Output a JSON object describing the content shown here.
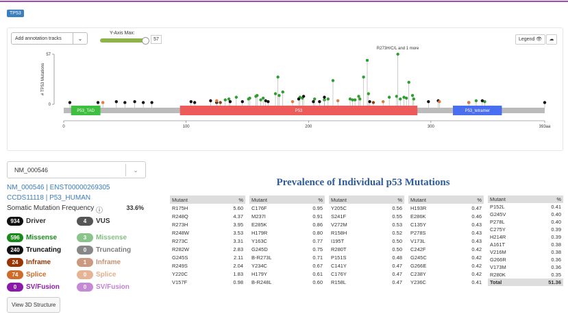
{
  "header": {
    "gene_badge": "TP53"
  },
  "controls": {
    "annotation_tracks": "Add annotation tracks",
    "y_axis_max_label": "Y-Axis Max:",
    "legend_button": "Legend"
  },
  "chart_data": {
    "type": "lollipop",
    "y_label": "# TP53 Mutations",
    "annotation": "R273H/C/L and 1 more",
    "annotation_x": 273,
    "xlim": [
      0,
      393
    ],
    "xticks": [
      0,
      100,
      200,
      300,
      {
        "value": 393,
        "label": "393aa"
      }
    ],
    "ylim": [
      0,
      57
    ],
    "yticks": [
      0,
      57
    ],
    "domains": [
      {
        "name": "P53_TAD",
        "start": 6,
        "end": 30,
        "color": "#3fbf3f"
      },
      {
        "name": "P53",
        "start": 95,
        "end": 289,
        "color": "#ec5a5a"
      },
      {
        "name": "P53_tetramer",
        "start": 318,
        "end": 358,
        "color": "#4a6ef0"
      }
    ],
    "series": [
      {
        "color": "#2e9e2e",
        "x": [
          132,
          135,
          141,
          151,
          152,
          157,
          158,
          161,
          163,
          173,
          175,
          176,
          179,
          193,
          195,
          205,
          213,
          216,
          220,
          234,
          236,
          238,
          241,
          242,
          245,
          248,
          249,
          266,
          272,
          273,
          275,
          278,
          280,
          282,
          285,
          286,
          337,
          344
        ],
        "values": [
          5,
          6,
          8,
          6,
          7,
          9,
          10,
          5,
          7,
          12,
          31,
          10,
          14,
          8,
          7,
          6,
          5,
          6,
          27,
          6,
          5,
          5,
          9,
          6,
          31,
          50,
          12,
          8,
          9,
          57,
          6,
          8,
          7,
          25,
          10,
          6,
          4,
          3
        ]
      },
      {
        "color": "#111111",
        "x": [
          5,
          28,
          43,
          50,
          58,
          65,
          72,
          104,
          107,
          120,
          125,
          136,
          146,
          165,
          167,
          192,
          196,
          204,
          209,
          213,
          250,
          298,
          306,
          331,
          342,
          393
        ],
        "values": [
          2,
          2,
          3,
          2,
          3,
          2,
          2,
          3,
          2,
          4,
          2,
          3,
          3,
          4,
          3,
          6,
          9,
          3,
          3,
          8,
          3,
          3,
          4,
          2,
          4,
          2
        ]
      },
      {
        "color": "#e07b39",
        "x": [
          32,
          125,
          187,
          224,
          261,
          307,
          331
        ],
        "values": [
          2,
          4,
          3,
          4,
          3,
          3,
          2
        ]
      },
      {
        "color": "#8b4513",
        "x": [
          128,
          253
        ],
        "values": [
          2,
          2
        ]
      }
    ]
  },
  "transcript": {
    "selected": "NM_000546",
    "links_1": "NM_000546 | ENST00000269305",
    "links_2": "CCDS11118 | P53_HUMAN",
    "frequency_label": "Somatic Mutation Frequency",
    "frequency": "33.6%",
    "driver": {
      "count": 934,
      "label": "Driver"
    },
    "vus": {
      "count": 4,
      "label": "VUS"
    },
    "types": [
      {
        "label": "Missense",
        "driver": 596,
        "vus": 3,
        "color": "#1a8a1a"
      },
      {
        "label": "Truncating",
        "driver": 240,
        "vus": 0,
        "color": "#111111"
      },
      {
        "label": "Inframe",
        "driver": 24,
        "vus": 1,
        "color": "#993404"
      },
      {
        "label": "Splice",
        "driver": 74,
        "vus": 0,
        "color": "#cf6b2b"
      },
      {
        "label": "SV/Fusion",
        "driver": 0,
        "vus": 0,
        "color": "#8b1aaa"
      }
    ],
    "view_3d": "View 3D Structure"
  },
  "table": {
    "title": "Prevalence of Individual p53 Mutations",
    "headers": [
      "Mutant",
      "%"
    ],
    "groups": [
      [
        [
          "R175H",
          "5.60"
        ],
        [
          "R248Q",
          "4.37"
        ],
        [
          "R273H",
          "3.95"
        ],
        [
          "R248W",
          "3.53"
        ],
        [
          "R273C",
          "3.31"
        ],
        [
          "R282W",
          "2.83"
        ],
        [
          "G245S",
          "2.11"
        ],
        [
          "R249S",
          "2.04"
        ],
        [
          "Y220C",
          "1.83"
        ],
        [
          "V157F",
          "0.98"
        ]
      ],
      [
        [
          "C176F",
          "0.95"
        ],
        [
          "M237I",
          "0.91"
        ],
        [
          "E285K",
          "0.86"
        ],
        [
          "H179R",
          "0.80"
        ],
        [
          "Y163C",
          "0.77"
        ],
        [
          "G245D",
          "0.75"
        ],
        [
          "B-R273L",
          "0.71"
        ],
        [
          "Y234C",
          "0.67"
        ],
        [
          "H179Y",
          "0.61"
        ],
        [
          "B-R248L",
          "0.60"
        ]
      ],
      [
        [
          "Y205C",
          "0.56"
        ],
        [
          "S241F",
          "0.55"
        ],
        [
          "V272M",
          "0.53"
        ],
        [
          "R158H",
          "0.52"
        ],
        [
          "I195T",
          "0.50"
        ],
        [
          "R280T",
          "0.50"
        ],
        [
          "P151S",
          "0.48"
        ],
        [
          "C141Y",
          "0.47"
        ],
        [
          "C176Y",
          "0.47"
        ],
        [
          "R158L",
          "0.47"
        ]
      ],
      [
        [
          "H193R",
          "0.47"
        ],
        [
          "E286K",
          "0.46"
        ],
        [
          "C135Y",
          "0.43"
        ],
        [
          "P278S",
          "0.43"
        ],
        [
          "V173L",
          "0.43"
        ],
        [
          "C242F",
          "0.42"
        ],
        [
          "G245C",
          "0.42"
        ],
        [
          "G266E",
          "0.42"
        ],
        [
          "C238Y",
          "0.42"
        ],
        [
          "Y236C",
          "0.41"
        ]
      ],
      [
        [
          "P152L",
          "0.41"
        ],
        [
          "G245V",
          "0.40"
        ],
        [
          "P278L",
          "0.40"
        ],
        [
          "C275Y",
          "0.39"
        ],
        [
          "H214R",
          "0.39"
        ],
        [
          "A161T",
          "0.38"
        ],
        [
          "V216M",
          "0.38"
        ],
        [
          "G266R",
          "0.36"
        ],
        [
          "V173M",
          "0.36"
        ],
        [
          "R280K",
          "0.35"
        ]
      ]
    ],
    "total": [
      "Total",
      "51.36"
    ]
  }
}
